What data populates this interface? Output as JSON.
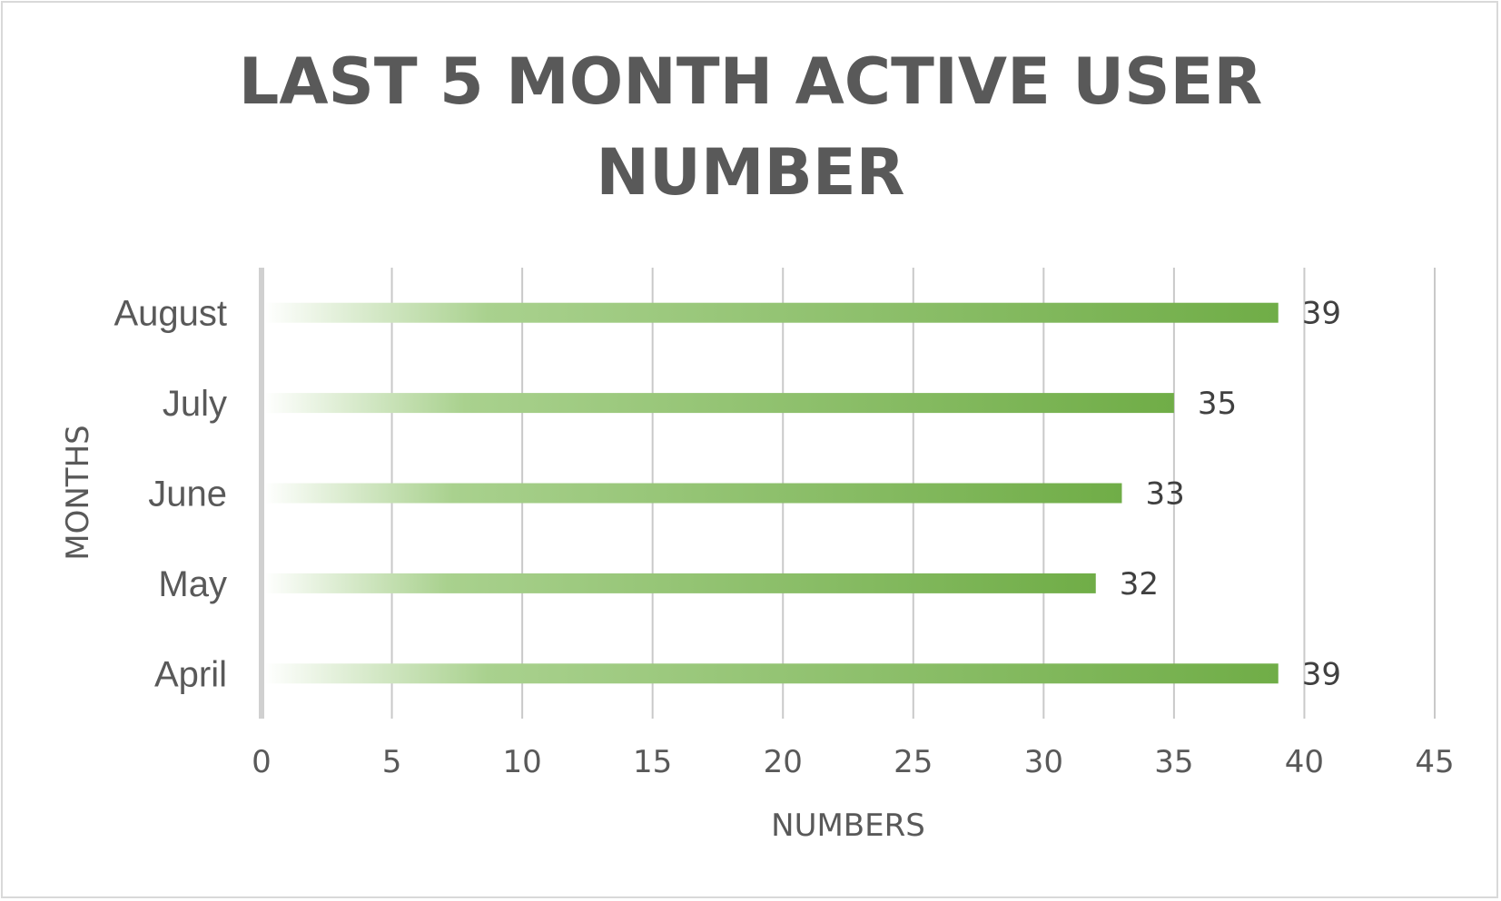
{
  "chart_data": {
    "type": "bar",
    "orientation": "horizontal",
    "title_lines": [
      "LAST 5 MONTH ACTIVE USER",
      "NUMBER"
    ],
    "title": "LAST 5 MONTH ACTIVE USER NUMBER",
    "xlabel": "NUMBERS",
    "ylabel": "MONTHS",
    "categories": [
      "April",
      "May",
      "June",
      "July",
      "August"
    ],
    "values": [
      39,
      32,
      33,
      35,
      39
    ],
    "data_labels": [
      "39",
      "32",
      "33",
      "35",
      "39"
    ],
    "xlim": [
      0,
      45
    ],
    "xticks": [
      0,
      5,
      10,
      15,
      20,
      25,
      30,
      35,
      40,
      45
    ],
    "xtick_labels": [
      "0",
      "5",
      "10",
      "15",
      "20",
      "25",
      "30",
      "35",
      "40",
      "45"
    ],
    "grid": "vertical",
    "legend": "none",
    "bar_color": "#70ad47",
    "bar_gradient": "left-white-to-green",
    "grid_color": "#c9c9c9",
    "text_color": "#595959"
  }
}
